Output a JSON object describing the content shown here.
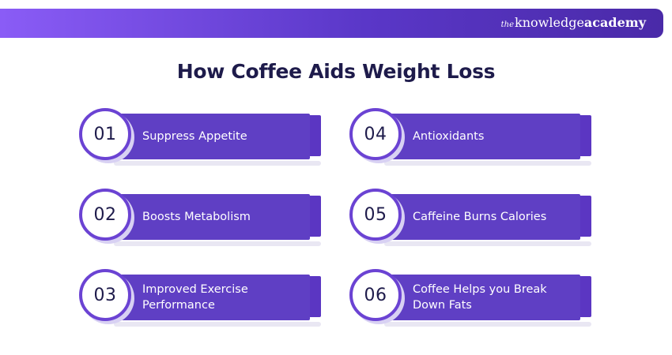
{
  "header": {
    "brand_prefix": "the",
    "brand_name": "knowledge",
    "brand_suffix": "academy"
  },
  "title": "How Coffee Aids Weight Loss",
  "items": [
    {
      "number": "01",
      "label": "Suppress Appetite"
    },
    {
      "number": "02",
      "label": "Boosts Metabolism"
    },
    {
      "number": "03",
      "label": "Improved Exercise Performance"
    },
    {
      "number": "04",
      "label": "Antioxidants"
    },
    {
      "number": "05",
      "label": "Caffeine Burns Calories"
    },
    {
      "number": "06",
      "label": "Coffee Helps you Break Down Fats"
    }
  ],
  "colors": {
    "banner_start": "#8a5cf6",
    "banner_end": "#4a2aa8",
    "card_bar": "#5f3fc4",
    "circle_border": "#6b43d3",
    "title_text": "#1e1b4b"
  }
}
